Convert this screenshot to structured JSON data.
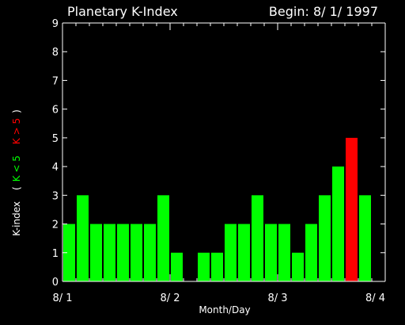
{
  "chart_data": {
    "type": "bar",
    "title": "Planetary K-Index",
    "begin_label": "Begin: 8/ 1/ 1997",
    "xlabel": "Month/Day",
    "ylabel": {
      "prefix": "K-index",
      "open": "(",
      "low": "K < 5",
      "high": "K > 5",
      "close": ")"
    },
    "x_ticks": [
      "8/ 1",
      "8/ 2",
      "8/ 3",
      "8/ 4"
    ],
    "y_ticks": [
      "0",
      "1",
      "2",
      "3",
      "4",
      "5",
      "6",
      "7",
      "8",
      "9"
    ],
    "ylim": [
      0,
      9
    ],
    "x_range_days": [
      0,
      3
    ],
    "grid": false,
    "bars_per_day": 8,
    "threshold": 5,
    "values": [
      2,
      3,
      2,
      2,
      2,
      2,
      2,
      3,
      1,
      0,
      1,
      1,
      2,
      2,
      3,
      2,
      2,
      1,
      2,
      3,
      4,
      5,
      3
    ],
    "colors": {
      "normal": "#00ff00",
      "storm": "#ff0000",
      "axes": "#ffffff",
      "background": "#000000"
    }
  }
}
